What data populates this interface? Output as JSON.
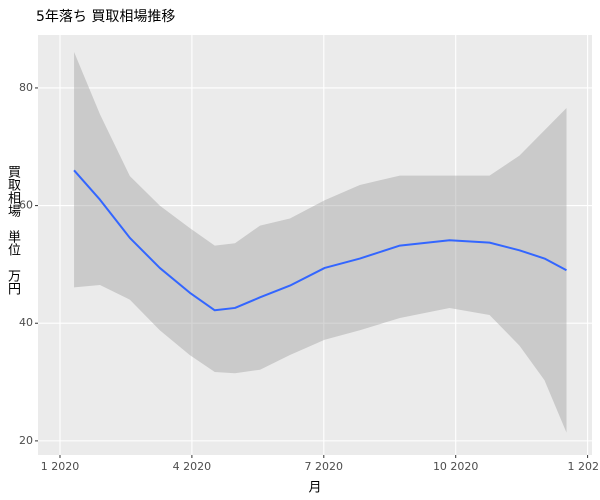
{
  "chart_data": {
    "type": "line",
    "title": "5年落ち 買取相場推移",
    "x_label": "月",
    "y_label": "買取相場　単位　万円",
    "x": [
      1.32,
      1.91,
      2.59,
      3.27,
      3.95,
      4.52,
      4.98,
      5.55,
      6.23,
      7.02,
      7.82,
      8.73,
      9.86,
      10.77,
      11.45,
      12.02,
      12.52
    ],
    "values": [
      66,
      61,
      54.5,
      49.4,
      45.2,
      42.2,
      42.6,
      44.4,
      46.4,
      49.4,
      51,
      53.2,
      54.1,
      53.7,
      52.4,
      51,
      49
    ],
    "band": {
      "lower": [
        46.1,
        46.5,
        44,
        38.8,
        34.6,
        31.7,
        31.5,
        32.1,
        34.6,
        37.2,
        38.8,
        40.9,
        42.6,
        41.4,
        36.2,
        30.3,
        21.4
      ],
      "upper": [
        86.1,
        75.5,
        65,
        60,
        56.2,
        53.2,
        53.6,
        56.6,
        57.8,
        60.9,
        63.5,
        65.1,
        65.1,
        65.1,
        68.5,
        72.8,
        76.6
      ]
    },
    "color": "#3366ff",
    "band_color": "#999999",
    "xlim": [
      0.5,
      13.1
    ],
    "xticks": [
      {
        "value": 1,
        "label": "1 2020"
      },
      {
        "value": 4,
        "label": "4 2020"
      },
      {
        "value": 7,
        "label": "7 2020"
      },
      {
        "value": 10,
        "label": "10 2020"
      },
      {
        "value": 13,
        "label": "1 202"
      }
    ],
    "ylim": [
      17.6,
      89
    ],
    "yticks": [
      20,
      40,
      60,
      80
    ],
    "grid": true
  }
}
